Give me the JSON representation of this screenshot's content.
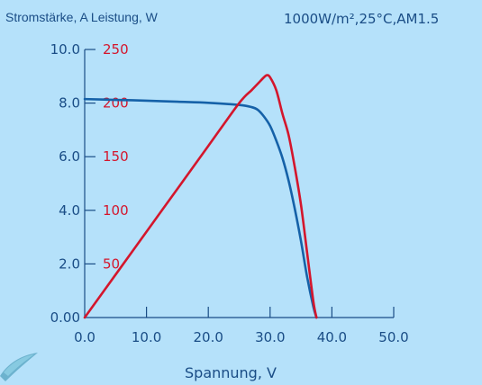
{
  "chart_data": {
    "type": "line",
    "title": "",
    "y_label_left": "Stromstärke, A Leistung, W",
    "conditions": "1000W/m²,25°C,AM1.5",
    "xlabel": "Spannung, V",
    "xlim": [
      0,
      50
    ],
    "ylim_current": [
      0,
      10
    ],
    "ylim_power": [
      0,
      250
    ],
    "x_ticks": [
      "0.0",
      "10.0",
      "20.0",
      "30.0",
      "40.0",
      "50.0"
    ],
    "y_ticks_current": [
      "0.00",
      "2.0",
      "4.0",
      "6.0",
      "8.0",
      "10.0"
    ],
    "y_ticks_power": [
      "50",
      "100",
      "150",
      "200",
      "250"
    ],
    "grid": false,
    "series": [
      {
        "name": "",
        "axis": "current",
        "color": "#1561a8",
        "x": [
          0,
          5,
          10,
          15,
          20,
          25,
          27,
          28,
          29,
          30,
          31,
          32,
          33,
          34,
          35,
          36,
          37,
          37.5
        ],
        "y": [
          8.15,
          8.12,
          8.09,
          8.05,
          8.01,
          7.93,
          7.85,
          7.75,
          7.5,
          7.15,
          6.6,
          5.95,
          5.1,
          4.05,
          2.85,
          1.5,
          0.4,
          0.0
        ]
      },
      {
        "name": "",
        "axis": "power",
        "color": "#d4162c",
        "x": [
          0,
          5,
          10,
          15,
          20,
          25,
          27,
          28,
          29,
          29.5,
          30,
          31,
          32,
          33,
          34,
          35,
          36,
          37,
          37.5
        ],
        "y": [
          0,
          40,
          80,
          120,
          160,
          200,
          212,
          218,
          224,
          226,
          224,
          212,
          190,
          170,
          140,
          105,
          60,
          15,
          0
        ]
      }
    ]
  }
}
